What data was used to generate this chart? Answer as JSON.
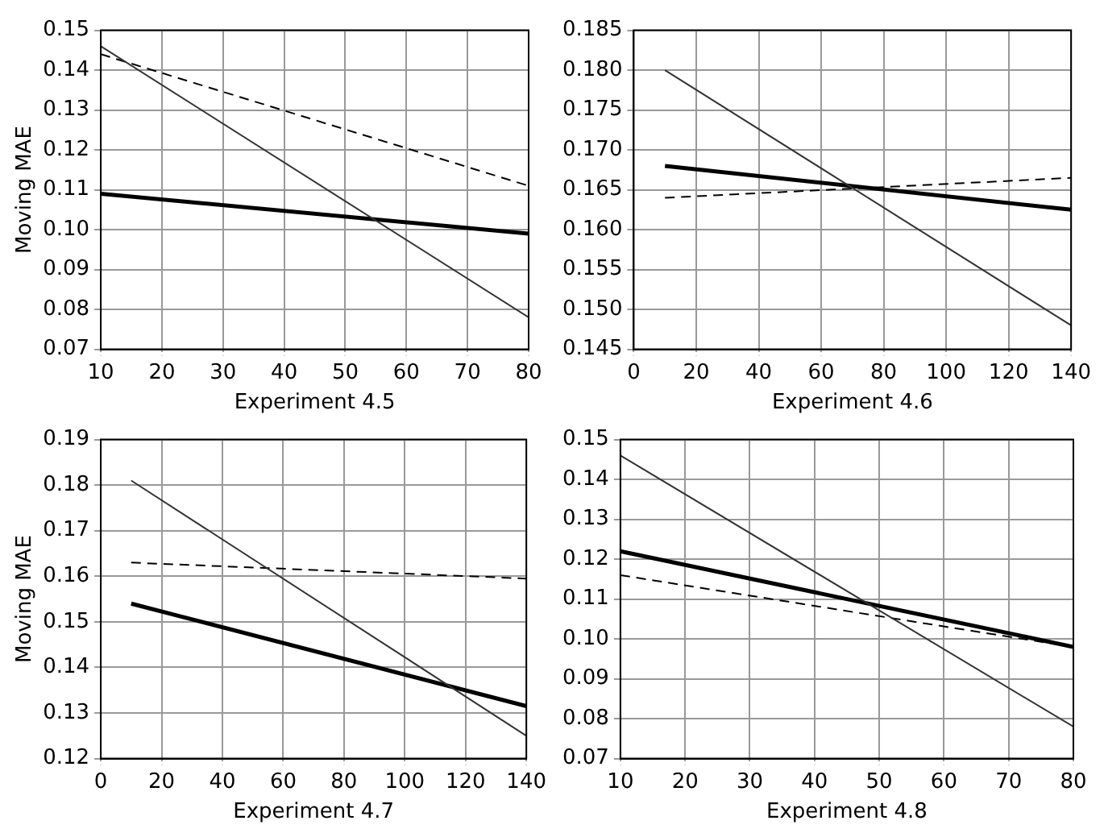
{
  "chart_data": [
    {
      "type": "line",
      "xlabel": "Experiment 4.5",
      "ylabel": "Moving MAE",
      "xlim": [
        10,
        80
      ],
      "xticks": [
        10,
        20,
        30,
        40,
        50,
        60,
        70,
        80
      ],
      "ylim": [
        0.07,
        0.15
      ],
      "yticks": [
        0.07,
        0.08,
        0.09,
        {
          "value": 0.1,
          "label": "0.10"
        },
        0.11,
        0.12,
        0.13,
        0.14,
        0.15
      ],
      "grid": true,
      "marker": "none",
      "series": [
        {
          "color": "#333333",
          "x": [
            10,
            80
          ],
          "values": [
            0.146,
            0.078
          ]
        },
        {
          "color": "#000000",
          "x": [
            10,
            80
          ],
          "values": [
            0.144,
            0.111
          ],
          "line_style": "dashed"
        },
        {
          "color": "#000000",
          "x": [
            10,
            80
          ],
          "values": [
            0.109,
            0.099
          ]
        }
      ]
    },
    {
      "type": "line",
      "xlabel": "Experiment 4.6",
      "xlim": [
        0,
        140
      ],
      "xticks": [
        0,
        20,
        40,
        60,
        80,
        100,
        120,
        140
      ],
      "ylim": [
        0.145,
        0.185
      ],
      "yticks": [
        0.145,
        {
          "value": 0.15,
          "label": "0.150"
        },
        0.155,
        {
          "value": 0.16,
          "label": "0.160"
        },
        0.165,
        {
          "value": 0.17,
          "label": "0.170"
        },
        0.175,
        {
          "value": 0.18,
          "label": "0.180"
        },
        0.185
      ],
      "grid": true,
      "marker": "none",
      "series": [
        {
          "color": "#333333",
          "x": [
            10,
            140
          ],
          "values": [
            0.18,
            0.148
          ]
        },
        {
          "color": "#000000",
          "x": [
            10,
            140
          ],
          "values": [
            0.164,
            0.1665
          ],
          "line_style": "dashed"
        },
        {
          "color": "#000000",
          "x": [
            10,
            140
          ],
          "values": [
            0.168,
            0.1625
          ]
        }
      ]
    },
    {
      "type": "line",
      "xlabel": "Experiment 4.7",
      "ylabel": "Moving MAE",
      "xlim": [
        0,
        140
      ],
      "xticks": [
        0,
        20,
        40,
        60,
        80,
        100,
        120,
        140
      ],
      "ylim": [
        0.12,
        0.19
      ],
      "yticks": [
        0.12,
        0.13,
        0.14,
        0.15,
        0.16,
        0.17,
        0.18,
        0.19
      ],
      "grid": true,
      "marker": "none",
      "series": [
        {
          "color": "#333333",
          "x": [
            10,
            140
          ],
          "values": [
            0.181,
            0.125
          ]
        },
        {
          "color": "#000000",
          "x": [
            10,
            140
          ],
          "values": [
            0.163,
            0.1595
          ],
          "line_style": "dashed"
        },
        {
          "color": "#000000",
          "x": [
            10,
            140
          ],
          "values": [
            0.154,
            0.1315
          ]
        }
      ]
    },
    {
      "type": "line",
      "xlabel": "Experiment 4.8",
      "xlim": [
        10,
        80
      ],
      "xticks": [
        10,
        20,
        30,
        40,
        50,
        60,
        70,
        80
      ],
      "ylim": [
        0.07,
        0.15
      ],
      "yticks": [
        0.07,
        0.08,
        0.09,
        {
          "value": 0.1,
          "label": "0.10"
        },
        0.11,
        0.12,
        0.13,
        0.14,
        0.15
      ],
      "grid": true,
      "marker": "none",
      "series": [
        {
          "color": "#333333",
          "x": [
            10,
            80
          ],
          "values": [
            0.146,
            0.078
          ]
        },
        {
          "color": "#000000",
          "x": [
            10,
            80
          ],
          "values": [
            0.116,
            0.098
          ],
          "line_style": "dashed"
        },
        {
          "color": "#000000",
          "x": [
            10,
            80
          ],
          "values": [
            0.122,
            0.098
          ]
        }
      ]
    }
  ]
}
